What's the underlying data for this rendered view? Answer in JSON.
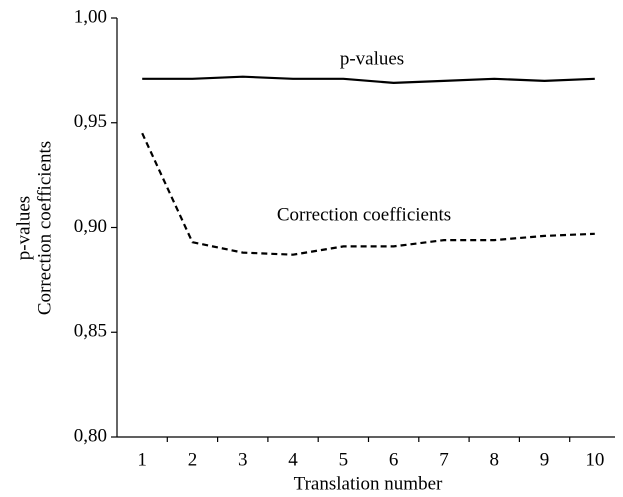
{
  "chart_data": {
    "type": "line",
    "categories": [
      "1",
      "2",
      "3",
      "4",
      "5",
      "6",
      "7",
      "8",
      "9",
      "10"
    ],
    "series": [
      {
        "name": "p-values",
        "color": "#000000",
        "dash": "solid",
        "values": [
          0.971,
          0.971,
          0.972,
          0.971,
          0.971,
          0.969,
          0.97,
          0.971,
          0.97,
          0.971
        ]
      },
      {
        "name": "Correction coefficients",
        "color": "#000000",
        "dash": "dashed",
        "values": [
          0.945,
          0.893,
          0.888,
          0.887,
          0.891,
          0.891,
          0.894,
          0.894,
          0.896,
          0.897
        ]
      }
    ],
    "ylabel": [
      "p-values",
      "Correction coefficients"
    ],
    "xlabel": "Translation number",
    "ylim": [
      0.8,
      1.0
    ],
    "yticks": [
      {
        "value": 0.8,
        "label": "0,80"
      },
      {
        "value": 0.85,
        "label": "0,85"
      },
      {
        "value": 0.9,
        "label": "0,90"
      },
      {
        "value": 0.95,
        "label": "0,95"
      },
      {
        "value": 1.0,
        "label": "1,00"
      }
    ],
    "grid": false
  }
}
